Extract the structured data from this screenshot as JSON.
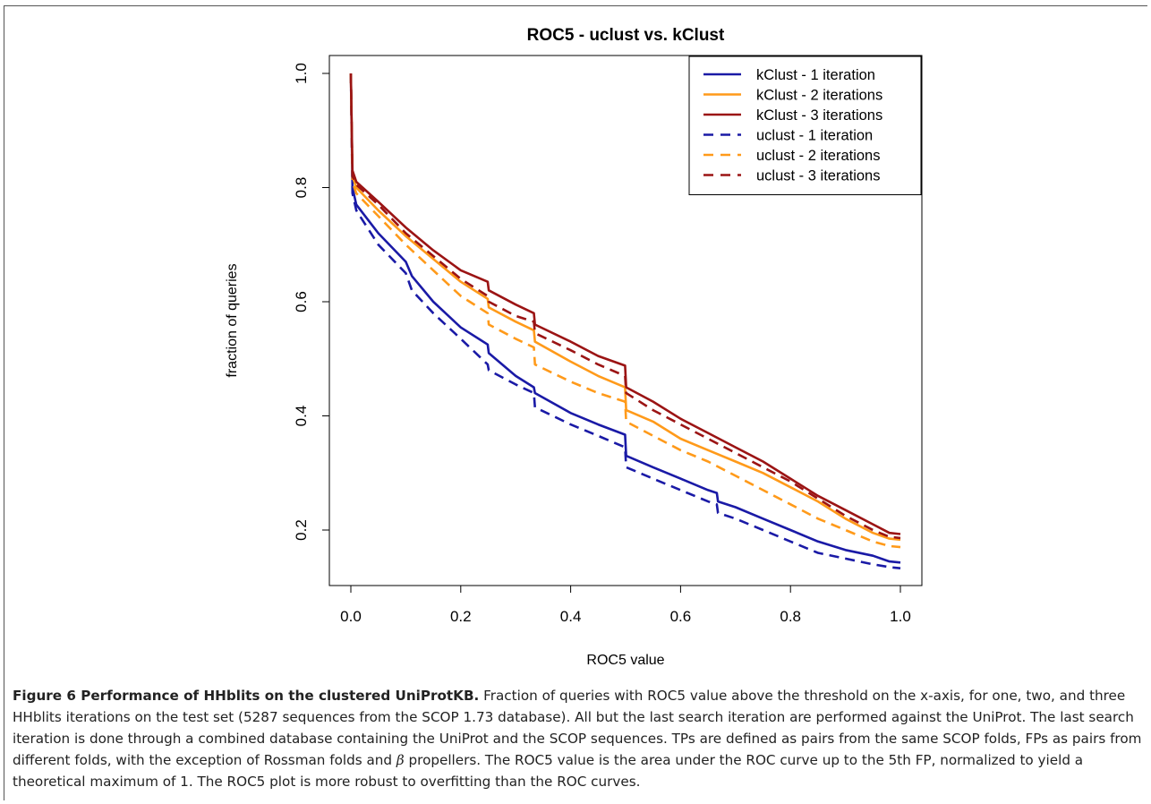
{
  "chart_data": {
    "type": "line",
    "title": "ROC5 - uclust vs. kClust",
    "xlabel": "ROC5 value",
    "ylabel": "fraction of queries",
    "xlim": [
      0,
      1
    ],
    "ylim": [
      0.13,
      1.0
    ],
    "xticks": [
      "0.0",
      "0.2",
      "0.4",
      "0.6",
      "0.8",
      "1.0"
    ],
    "yticks": [
      "0.2",
      "0.4",
      "0.6",
      "0.8",
      "1.0"
    ],
    "legend_position": "top-right",
    "grid": false,
    "series": [
      {
        "name": "kClust - 1 iteration",
        "color": "#1a1aa6",
        "dash": "solid",
        "x": [
          0,
          0.003,
          0.01,
          0.05,
          0.1,
          0.111,
          0.15,
          0.2,
          0.249,
          0.251,
          0.3,
          0.333,
          0.335,
          0.4,
          0.45,
          0.499,
          0.501,
          0.55,
          0.6,
          0.65,
          0.666,
          0.668,
          0.7,
          0.75,
          0.8,
          0.85,
          0.9,
          0.95,
          0.98,
          1.0
        ],
        "y": [
          1.0,
          0.8,
          0.77,
          0.72,
          0.67,
          0.645,
          0.6,
          0.555,
          0.525,
          0.51,
          0.47,
          0.45,
          0.44,
          0.405,
          0.385,
          0.367,
          0.33,
          0.31,
          0.29,
          0.27,
          0.265,
          0.25,
          0.24,
          0.22,
          0.2,
          0.18,
          0.165,
          0.155,
          0.145,
          0.143
        ]
      },
      {
        "name": "kClust - 2 iterations",
        "color": "#ff9a1a",
        "dash": "solid",
        "x": [
          0,
          0.003,
          0.01,
          0.05,
          0.1,
          0.15,
          0.2,
          0.249,
          0.251,
          0.3,
          0.333,
          0.335,
          0.4,
          0.45,
          0.499,
          0.501,
          0.55,
          0.6,
          0.65,
          0.7,
          0.75,
          0.8,
          0.85,
          0.9,
          0.95,
          0.98,
          1.0
        ],
        "y": [
          1.0,
          0.82,
          0.8,
          0.76,
          0.715,
          0.675,
          0.635,
          0.605,
          0.59,
          0.565,
          0.55,
          0.53,
          0.495,
          0.47,
          0.45,
          0.41,
          0.39,
          0.36,
          0.34,
          0.32,
          0.3,
          0.275,
          0.25,
          0.22,
          0.195,
          0.185,
          0.183
        ]
      },
      {
        "name": "kClust - 3 iterations",
        "color": "#9b1414",
        "dash": "solid",
        "x": [
          0,
          0.003,
          0.01,
          0.05,
          0.1,
          0.15,
          0.2,
          0.249,
          0.251,
          0.3,
          0.333,
          0.335,
          0.4,
          0.45,
          0.499,
          0.501,
          0.55,
          0.6,
          0.65,
          0.7,
          0.75,
          0.8,
          0.85,
          0.9,
          0.95,
          0.98,
          1.0
        ],
        "y": [
          1.0,
          0.83,
          0.81,
          0.775,
          0.73,
          0.69,
          0.655,
          0.635,
          0.62,
          0.595,
          0.58,
          0.56,
          0.53,
          0.505,
          0.488,
          0.45,
          0.425,
          0.395,
          0.37,
          0.345,
          0.32,
          0.29,
          0.26,
          0.235,
          0.21,
          0.195,
          0.193
        ]
      },
      {
        "name": "uclust - 1 iteration",
        "color": "#1a1aa6",
        "dash": "dashed",
        "x": [
          0,
          0.003,
          0.01,
          0.05,
          0.1,
          0.111,
          0.15,
          0.2,
          0.249,
          0.251,
          0.3,
          0.333,
          0.335,
          0.4,
          0.45,
          0.499,
          0.501,
          0.55,
          0.6,
          0.65,
          0.666,
          0.668,
          0.7,
          0.75,
          0.8,
          0.85,
          0.9,
          0.95,
          0.98,
          1.0
        ],
        "y": [
          1.0,
          0.79,
          0.76,
          0.7,
          0.65,
          0.62,
          0.58,
          0.535,
          0.49,
          0.48,
          0.455,
          0.44,
          0.415,
          0.385,
          0.365,
          0.345,
          0.31,
          0.29,
          0.27,
          0.25,
          0.245,
          0.23,
          0.22,
          0.2,
          0.18,
          0.16,
          0.15,
          0.14,
          0.135,
          0.133
        ]
      },
      {
        "name": "uclust - 2 iterations",
        "color": "#ff9a1a",
        "dash": "dashed",
        "x": [
          0,
          0.003,
          0.01,
          0.05,
          0.1,
          0.15,
          0.2,
          0.249,
          0.251,
          0.3,
          0.333,
          0.335,
          0.4,
          0.45,
          0.499,
          0.501,
          0.55,
          0.6,
          0.65,
          0.7,
          0.75,
          0.8,
          0.85,
          0.9,
          0.95,
          0.98,
          1.0
        ],
        "y": [
          1.0,
          0.81,
          0.79,
          0.75,
          0.7,
          0.655,
          0.61,
          0.58,
          0.56,
          0.535,
          0.52,
          0.49,
          0.46,
          0.44,
          0.425,
          0.39,
          0.365,
          0.34,
          0.32,
          0.295,
          0.27,
          0.245,
          0.22,
          0.2,
          0.18,
          0.172,
          0.17
        ]
      },
      {
        "name": "uclust - 3 iterations",
        "color": "#9b1414",
        "dash": "dashed",
        "x": [
          0,
          0.003,
          0.01,
          0.05,
          0.1,
          0.15,
          0.2,
          0.249,
          0.251,
          0.3,
          0.333,
          0.335,
          0.4,
          0.45,
          0.499,
          0.501,
          0.55,
          0.6,
          0.65,
          0.7,
          0.75,
          0.8,
          0.85,
          0.9,
          0.95,
          0.98,
          1.0
        ],
        "y": [
          1.0,
          0.82,
          0.805,
          0.77,
          0.72,
          0.68,
          0.64,
          0.61,
          0.6,
          0.575,
          0.565,
          0.545,
          0.515,
          0.49,
          0.47,
          0.44,
          0.41,
          0.385,
          0.36,
          0.335,
          0.31,
          0.285,
          0.255,
          0.225,
          0.2,
          0.188,
          0.186
        ]
      }
    ]
  },
  "caption": {
    "label": "Figure 6 Performance of HHblits on the clustered UniProtKB.",
    "text_before_beta": " Fraction of queries with ROC5 value above the threshold on the x-axis, for one, two, and three HHblits iterations on the test set (5287 sequences from the SCOP 1.73 database). All but the last search iteration are performed against the UniProt. The last search iteration is done through a combined database containing the UniProt and the SCOP sequences. TPs are defined as pairs from the same SCOP folds, FPs as pairs from different folds, with the exception of Rossman folds and ",
    "beta": "β",
    "text_after_beta": " propellers. The ROC5 value is the area under the ROC curve up to the 5th FP, normalized to yield a theoretical maximum of 1. The ROC5 plot is more robust to overfitting than the ROC curves."
  }
}
